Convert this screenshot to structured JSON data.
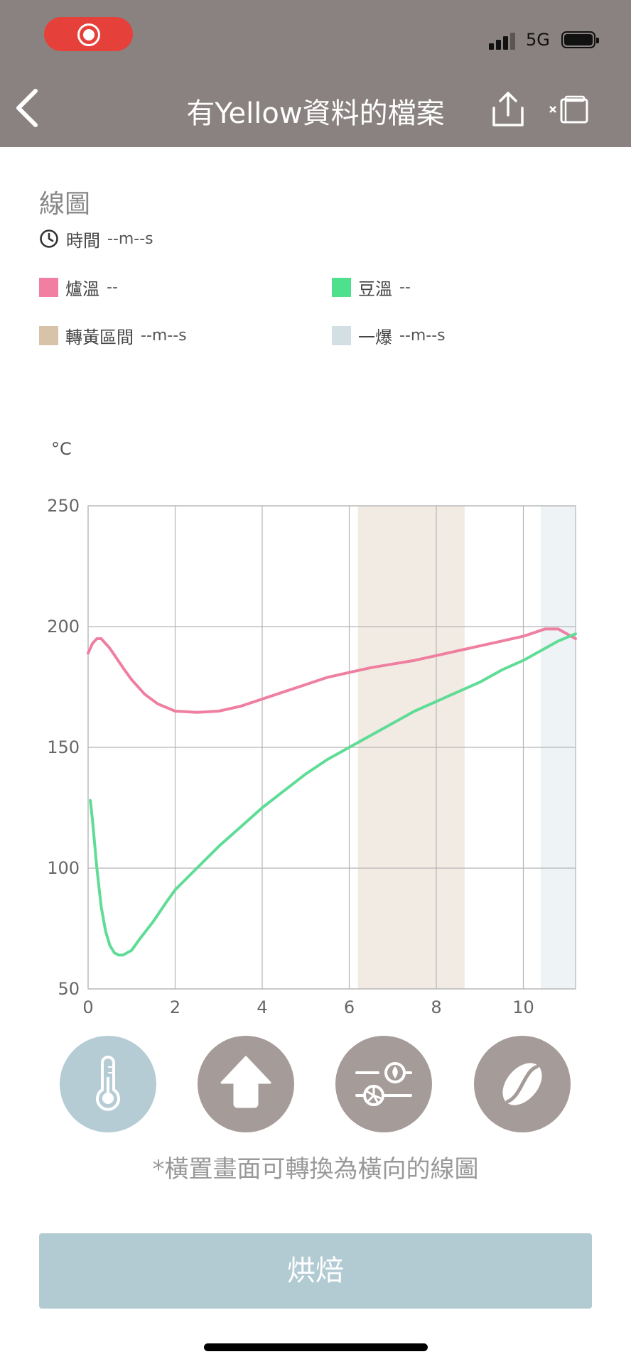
{
  "nav": {
    "title": "有Yellow資料的檔案",
    "status_network": "5G",
    "back_icon": "chevron-left-icon",
    "share_icon": "share-icon",
    "landscape_icon": "rotate-landscape-icon"
  },
  "legend": {
    "section_title": "線圖",
    "time_label": "時間",
    "time_value": "--m--s",
    "items": [
      {
        "label": "爐溫",
        "value": "--",
        "color": "#f07fa1"
      },
      {
        "label": "豆溫",
        "value": "--",
        "color": "#4fe08e"
      },
      {
        "label": "轉黃區間",
        "value": "--m--s",
        "color": "#d9c3a8"
      },
      {
        "label": "一爆",
        "value": "--m--s",
        "color": "#d2e0e6"
      }
    ]
  },
  "chart_data": {
    "type": "line",
    "ylabel": "°C",
    "xlabel": "",
    "xlim": [
      0,
      11.2
    ],
    "ylim": [
      50,
      250
    ],
    "xticks": [
      0,
      2,
      4,
      6,
      8,
      10
    ],
    "yticks": [
      50,
      100,
      150,
      200,
      250
    ],
    "grid": true,
    "bands": [
      {
        "name": "轉黃區間",
        "x0": 6.2,
        "x1": 8.65,
        "color": "#f2ebe3"
      },
      {
        "name": "一爆",
        "x0": 10.4,
        "x1": 11.2,
        "color": "#eef3f6"
      }
    ],
    "series": [
      {
        "name": "爐溫",
        "color": "#ef7fa0",
        "points": [
          [
            0,
            189
          ],
          [
            0.1,
            193
          ],
          [
            0.2,
            195
          ],
          [
            0.3,
            195
          ],
          [
            0.5,
            191
          ],
          [
            0.8,
            183
          ],
          [
            1.0,
            178
          ],
          [
            1.3,
            172
          ],
          [
            1.6,
            168
          ],
          [
            2.0,
            165
          ],
          [
            2.5,
            164.5
          ],
          [
            3.0,
            165
          ],
          [
            3.5,
            167
          ],
          [
            4.0,
            170
          ],
          [
            4.5,
            173
          ],
          [
            5.0,
            176
          ],
          [
            5.5,
            179
          ],
          [
            6.0,
            181
          ],
          [
            6.5,
            183
          ],
          [
            7.0,
            184.5
          ],
          [
            7.5,
            186
          ],
          [
            8.0,
            188
          ],
          [
            8.5,
            190
          ],
          [
            9.0,
            192
          ],
          [
            9.5,
            194
          ],
          [
            10.0,
            196
          ],
          [
            10.5,
            199
          ],
          [
            10.8,
            199
          ],
          [
            11.0,
            197
          ],
          [
            11.2,
            195
          ]
        ]
      },
      {
        "name": "豆溫",
        "color": "#5fdc95",
        "points": [
          [
            0.05,
            128
          ],
          [
            0.1,
            120
          ],
          [
            0.2,
            100
          ],
          [
            0.3,
            84
          ],
          [
            0.4,
            74
          ],
          [
            0.5,
            68
          ],
          [
            0.6,
            65
          ],
          [
            0.7,
            64
          ],
          [
            0.8,
            64
          ],
          [
            1.0,
            66
          ],
          [
            1.2,
            71
          ],
          [
            1.5,
            78
          ],
          [
            1.8,
            86
          ],
          [
            2.0,
            91
          ],
          [
            2.5,
            100
          ],
          [
            3.0,
            109
          ],
          [
            3.5,
            117
          ],
          [
            4.0,
            125
          ],
          [
            4.5,
            132
          ],
          [
            5.0,
            139
          ],
          [
            5.5,
            145
          ],
          [
            6.0,
            150
          ],
          [
            6.5,
            155
          ],
          [
            7.0,
            160
          ],
          [
            7.5,
            165
          ],
          [
            8.0,
            169
          ],
          [
            8.5,
            173
          ],
          [
            9.0,
            177
          ],
          [
            9.5,
            182
          ],
          [
            10.0,
            186
          ],
          [
            10.5,
            191
          ],
          [
            10.8,
            194
          ],
          [
            11.2,
            197
          ]
        ]
      }
    ]
  },
  "buttons": [
    {
      "name": "temperature-view-button",
      "icon": "thermometer-icon",
      "active": true
    },
    {
      "name": "ror-view-button",
      "icon": "arrow-up-icon",
      "active": false
    },
    {
      "name": "fan-fire-view-button",
      "icon": "fan-fire-icon",
      "active": false
    },
    {
      "name": "bean-view-button",
      "icon": "coffee-bean-icon",
      "active": false
    }
  ],
  "hint": "*橫置畫面可轉換為橫向的線圖",
  "roast_button": "烘焙"
}
